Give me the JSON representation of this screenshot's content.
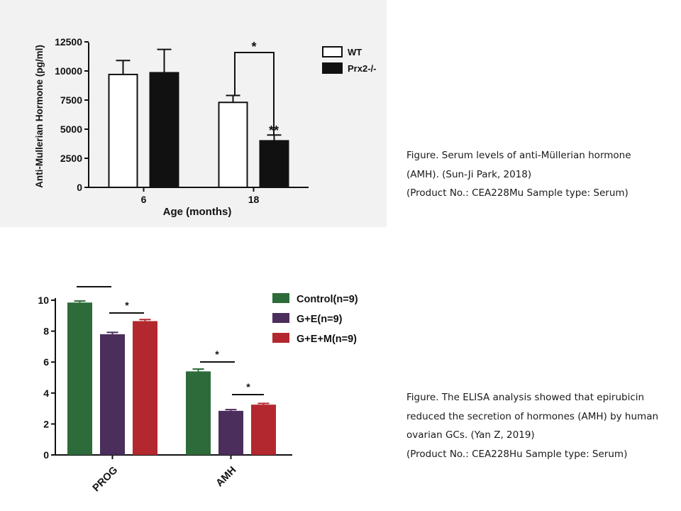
{
  "chart_data": [
    {
      "type": "bar",
      "ylabel": "Anti-Mullerian Hormone (pg/ml)",
      "xlabel": "Age (months)",
      "categories": [
        "6",
        "18"
      ],
      "ylim": [
        0,
        12500
      ],
      "yticks": [
        "0",
        "2500",
        "5000",
        "7500",
        "10000",
        "12500"
      ],
      "series": [
        {
          "name": "WT",
          "color": "#ffffff",
          "values": [
            9700,
            7300
          ],
          "errors": [
            1200,
            600
          ]
        },
        {
          "name": "Prx2-/-",
          "color": "#111111",
          "values": [
            9850,
            4000
          ],
          "errors": [
            2000,
            500
          ]
        }
      ],
      "annotations": {
        "bracket": "*",
        "bar": "**"
      },
      "legend_position": "right",
      "grid": false
    },
    {
      "type": "bar",
      "categories": [
        "PROG",
        "AMH"
      ],
      "ylim": [
        0,
        10
      ],
      "yticks": [
        "0",
        "2",
        "4",
        "6",
        "8",
        "10"
      ],
      "series": [
        {
          "name": "Control(n=9)",
          "color": "#2e6b3a",
          "values": [
            9.85,
            5.4
          ],
          "errors": [
            0.1,
            0.15
          ]
        },
        {
          "name": "G+E(n=9)",
          "color": "#4b2e5c",
          "values": [
            7.8,
            2.85
          ],
          "errors": [
            0.12,
            0.08
          ]
        },
        {
          "name": "G+E+M(n=9)",
          "color": "#b3282e",
          "values": [
            8.65,
            3.25
          ],
          "errors": [
            0.1,
            0.08
          ]
        }
      ],
      "annotations": {
        "bracket": "*"
      },
      "legend_position": "top-right",
      "grid": false
    }
  ],
  "captions": [
    {
      "lines": [
        "Figure. Serum levels of anti-Müllerian hormone",
        "(AMH). (Sun-Ji Park, 2018)",
        "(Product No.: CEA228Mu Sample type: Serum)"
      ]
    },
    {
      "lines": [
        "Figure. The ELISA analysis showed that epirubicin",
        "reduced the secretion of hormones (AMH) by human",
        "ovarian GCs. (Yan Z, 2019)",
        "(Product No.: CEA228Hu Sample type: Serum)"
      ]
    }
  ]
}
